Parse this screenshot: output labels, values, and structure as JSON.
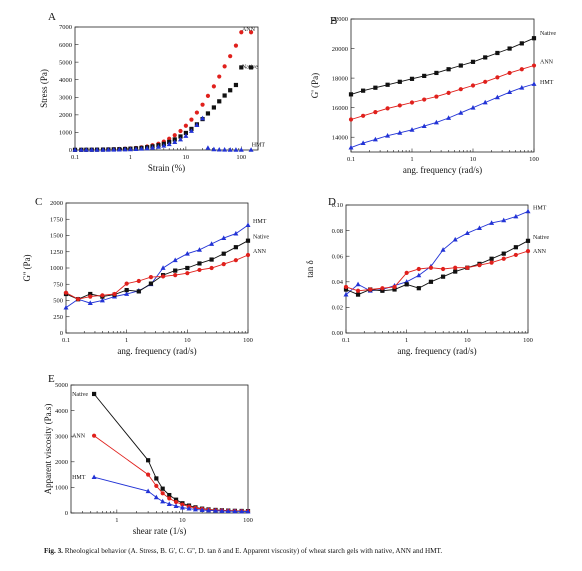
{
  "caption": {
    "label": "Fig. 3.",
    "text": "Rheological behavior (A. Stress, B. G', C. G'', D. tan δ and E. Apparent viscosity) of wheat starch gels with native, ANN and HMT."
  },
  "colors": {
    "native": "#111111",
    "ann": "#e0201c",
    "hmt": "#2233d6"
  },
  "chart_data": [
    {
      "panel": "A",
      "type": "scatter",
      "xscale": "log",
      "xlabel": "Strain (%)",
      "ylabel": "Stress (Pa)",
      "xlim": [
        0.1,
        200
      ],
      "ylim": [
        0,
        7000
      ],
      "xticks": [
        "0.1",
        "1",
        "10",
        "100"
      ],
      "yticks": [
        "0",
        "1000",
        "2000",
        "3000",
        "4000",
        "5000",
        "6000",
        "7000"
      ],
      "series": [
        {
          "name": "ANN",
          "color": "#e0201c",
          "marker": "circle",
          "line": false,
          "label_pos": [
            80,
            6900
          ],
          "x": [
            0.1,
            0.13,
            0.16,
            0.2,
            0.25,
            0.32,
            0.4,
            0.5,
            0.63,
            0.8,
            1,
            1.26,
            1.58,
            2,
            2.5,
            3.2,
            4,
            5,
            6.3,
            8,
            10,
            12.6,
            15.8,
            20,
            25,
            32,
            40,
            50,
            63,
            80,
            100,
            150
          ],
          "y": [
            10,
            12,
            15,
            18,
            22,
            28,
            35,
            44,
            55,
            70,
            90,
            115,
            150,
            200,
            270,
            360,
            480,
            640,
            840,
            1080,
            1380,
            1730,
            2130,
            2580,
            3080,
            3620,
            4180,
            4760,
            5340,
            5940,
            6700,
            6700
          ]
        },
        {
          "name": "Native",
          "color": "#111111",
          "marker": "square",
          "line": false,
          "label_pos": [
            80,
            4750
          ],
          "x": [
            0.1,
            0.13,
            0.16,
            0.2,
            0.25,
            0.32,
            0.4,
            0.5,
            0.63,
            0.8,
            1,
            1.26,
            1.58,
            2,
            2.5,
            3.2,
            4,
            5,
            6.3,
            8,
            10,
            12.6,
            15.8,
            20,
            25,
            32,
            40,
            50,
            63,
            80,
            100,
            150
          ],
          "y": [
            10,
            12,
            14,
            16,
            20,
            24,
            30,
            37,
            46,
            58,
            74,
            94,
            120,
            155,
            205,
            270,
            350,
            460,
            600,
            770,
            970,
            1200,
            1460,
            1760,
            2080,
            2420,
            2770,
            3100,
            3400,
            3700,
            4700,
            4700
          ]
        },
        {
          "name": "HMT",
          "color": "#2233d6",
          "marker": "triangle",
          "line": false,
          "label_pos": [
            120,
            300
          ],
          "x": [
            0.1,
            0.13,
            0.16,
            0.2,
            0.25,
            0.32,
            0.4,
            0.5,
            0.63,
            0.8,
            1,
            1.26,
            1.58,
            2,
            2.5,
            3.2,
            4,
            5,
            6.3,
            8,
            10,
            12.6,
            15.8,
            20,
            25,
            32,
            40,
            50,
            63,
            80,
            100,
            150
          ],
          "y": [
            5,
            6,
            7,
            8,
            10,
            12,
            15,
            18,
            23,
            30,
            40,
            52,
            70,
            95,
            130,
            180,
            240,
            330,
            450,
            600,
            800,
            1080,
            1420,
            1800,
            120,
            40,
            20,
            15,
            10,
            8,
            5,
            5
          ]
        }
      ]
    },
    {
      "panel": "B",
      "type": "line",
      "xscale": "log",
      "xlabel": "ang. frequency (rad/s)",
      "ylabel": "G' (Pa)",
      "xlim": [
        0.1,
        100
      ],
      "ylim": [
        13000,
        22000
      ],
      "xticks": [
        "0.1",
        "1",
        "10",
        "100"
      ],
      "yticks": [
        "14000",
        "16000",
        "18000",
        "20000",
        "22000"
      ],
      "series": [
        {
          "name": "Native",
          "color": "#111111",
          "marker": "square",
          "x": [
            0.1,
            0.158,
            0.251,
            0.398,
            0.631,
            1,
            1.585,
            2.512,
            3.981,
            6.31,
            10,
            15.85,
            25.12,
            39.81,
            63.1,
            100
          ],
          "y": [
            16900,
            17150,
            17350,
            17550,
            17750,
            17950,
            18150,
            18350,
            18600,
            18850,
            19100,
            19400,
            19700,
            20000,
            20350,
            20700
          ]
        },
        {
          "name": "ANN",
          "color": "#e0201c",
          "marker": "circle",
          "x": [
            0.1,
            0.158,
            0.251,
            0.398,
            0.631,
            1,
            1.585,
            2.512,
            3.981,
            6.31,
            10,
            15.85,
            25.12,
            39.81,
            63.1,
            100
          ],
          "y": [
            15200,
            15450,
            15700,
            15950,
            16150,
            16350,
            16550,
            16750,
            17000,
            17250,
            17500,
            17750,
            18050,
            18350,
            18600,
            18850
          ]
        },
        {
          "name": "HMT",
          "color": "#2233d6",
          "marker": "triangle",
          "x": [
            0.1,
            0.158,
            0.251,
            0.398,
            0.631,
            1,
            1.585,
            2.512,
            3.981,
            6.31,
            10,
            15.85,
            25.12,
            39.81,
            63.1,
            100
          ],
          "y": [
            13300,
            13600,
            13850,
            14100,
            14300,
            14500,
            14750,
            15000,
            15300,
            15650,
            16000,
            16350,
            16700,
            17050,
            17350,
            17600
          ]
        }
      ]
    },
    {
      "panel": "C",
      "type": "line",
      "xscale": "log",
      "xlabel": "ang. frequency (rad/s)",
      "ylabel": "G'' (Pa)",
      "xlim": [
        0.1,
        100
      ],
      "ylim": [
        0,
        2000
      ],
      "xticks": [
        "0.1",
        "1",
        "10",
        "100"
      ],
      "yticks": [
        "0",
        "250",
        "500",
        "750",
        "1000",
        "1250",
        "1500",
        "1750",
        "2000"
      ],
      "series": [
        {
          "name": "HMT",
          "color": "#2233d6",
          "marker": "triangle",
          "x": [
            0.1,
            0.158,
            0.251,
            0.398,
            0.631,
            1,
            1.585,
            2.512,
            3.981,
            6.31,
            10,
            15.85,
            25.12,
            39.81,
            63.1,
            100
          ],
          "y": [
            390,
            520,
            460,
            500,
            560,
            600,
            650,
            750,
            1000,
            1120,
            1220,
            1280,
            1370,
            1460,
            1530,
            1660
          ]
        },
        {
          "name": "Native",
          "color": "#111111",
          "marker": "square",
          "x": [
            0.1,
            0.158,
            0.251,
            0.398,
            0.631,
            1,
            1.585,
            2.512,
            3.981,
            6.31,
            10,
            15.85,
            25.12,
            39.81,
            63.1,
            100
          ],
          "y": [
            600,
            520,
            600,
            560,
            590,
            660,
            640,
            760,
            890,
            960,
            1000,
            1070,
            1130,
            1220,
            1320,
            1420
          ]
        },
        {
          "name": "ANN",
          "color": "#e0201c",
          "marker": "circle",
          "x": [
            0.1,
            0.158,
            0.251,
            0.398,
            0.631,
            1,
            1.585,
            2.512,
            3.981,
            6.31,
            10,
            15.85,
            25.12,
            39.81,
            63.1,
            100
          ],
          "y": [
            620,
            520,
            560,
            580,
            600,
            760,
            800,
            860,
            870,
            890,
            920,
            970,
            1000,
            1060,
            1120,
            1200
          ]
        }
      ]
    },
    {
      "panel": "D",
      "type": "line",
      "xscale": "log",
      "xlabel": "ang. frequency (rad/s)",
      "ylabel": "tan δ",
      "xlim": [
        0.1,
        100
      ],
      "ylim": [
        0,
        0.1
      ],
      "xticks": [
        "0.1",
        "1",
        "10",
        "100"
      ],
      "yticks": [
        "0.00",
        "0.02",
        "0.04",
        "0.06",
        "0.08",
        "0.10"
      ],
      "series": [
        {
          "name": "HMT",
          "color": "#2233d6",
          "marker": "triangle",
          "x": [
            0.1,
            0.158,
            0.251,
            0.398,
            0.631,
            1,
            1.585,
            2.512,
            3.981,
            6.31,
            10,
            15.85,
            25.12,
            39.81,
            63.1,
            100
          ],
          "y": [
            0.03,
            0.038,
            0.033,
            0.034,
            0.037,
            0.04,
            0.045,
            0.052,
            0.065,
            0.073,
            0.078,
            0.082,
            0.086,
            0.088,
            0.091,
            0.095
          ]
        },
        {
          "name": "Native",
          "color": "#111111",
          "marker": "square",
          "x": [
            0.1,
            0.158,
            0.251,
            0.398,
            0.631,
            1,
            1.585,
            2.512,
            3.981,
            6.31,
            10,
            15.85,
            25.12,
            39.81,
            63.1,
            100
          ],
          "y": [
            0.034,
            0.03,
            0.034,
            0.033,
            0.034,
            0.038,
            0.035,
            0.04,
            0.044,
            0.048,
            0.051,
            0.054,
            0.058,
            0.062,
            0.067,
            0.072
          ]
        },
        {
          "name": "ANN",
          "color": "#e0201c",
          "marker": "circle",
          "x": [
            0.1,
            0.158,
            0.251,
            0.398,
            0.631,
            1,
            1.585,
            2.512,
            3.981,
            6.31,
            10,
            15.85,
            25.12,
            39.81,
            63.1,
            100
          ],
          "y": [
            0.036,
            0.033,
            0.034,
            0.035,
            0.036,
            0.047,
            0.05,
            0.051,
            0.05,
            0.051,
            0.051,
            0.053,
            0.055,
            0.058,
            0.061,
            0.064
          ]
        }
      ]
    },
    {
      "panel": "E",
      "type": "line",
      "xscale": "log",
      "xlabel": "shear rate (1/s)",
      "ylabel": "Apparent viscosity (Pa.s)",
      "xlim": [
        0.2,
        100
      ],
      "ylim": [
        0,
        5000
      ],
      "xticks": [
        "1",
        "10",
        "100"
      ],
      "yticks": [
        "0",
        "1000",
        "2000",
        "3000",
        "4000",
        "5000"
      ],
      "series": [
        {
          "name": "Native",
          "color": "#111111",
          "marker": "square",
          "x": [
            0.45,
            3.0,
            4.0,
            5.0,
            6.3,
            8.0,
            10,
            12.6,
            15.8,
            20,
            25,
            32,
            40,
            50,
            63,
            80,
            100
          ],
          "y": [
            4650,
            2060,
            1350,
            950,
            700,
            520,
            380,
            290,
            220,
            170,
            140,
            120,
            105,
            95,
            85,
            80,
            75
          ]
        },
        {
          "name": "ANN",
          "color": "#e0201c",
          "marker": "circle",
          "x": [
            0.45,
            3.0,
            4.0,
            5.0,
            6.3,
            8.0,
            10,
            12.6,
            15.8,
            20,
            25,
            32,
            40,
            50,
            63,
            80,
            100
          ],
          "y": [
            3020,
            1500,
            1060,
            770,
            570,
            430,
            330,
            250,
            195,
            155,
            130,
            110,
            98,
            88,
            80,
            74,
            70
          ]
        },
        {
          "name": "HMT",
          "color": "#2233d6",
          "marker": "triangle",
          "x": [
            0.45,
            3.0,
            4.0,
            5.0,
            6.3,
            8.0,
            10,
            12.6,
            15.8,
            20,
            25,
            32,
            40,
            50,
            63,
            80,
            100
          ],
          "y": [
            1400,
            850,
            610,
            450,
            350,
            270,
            210,
            170,
            140,
            115,
            100,
            88,
            80,
            72,
            66,
            62,
            58
          ]
        }
      ]
    }
  ]
}
